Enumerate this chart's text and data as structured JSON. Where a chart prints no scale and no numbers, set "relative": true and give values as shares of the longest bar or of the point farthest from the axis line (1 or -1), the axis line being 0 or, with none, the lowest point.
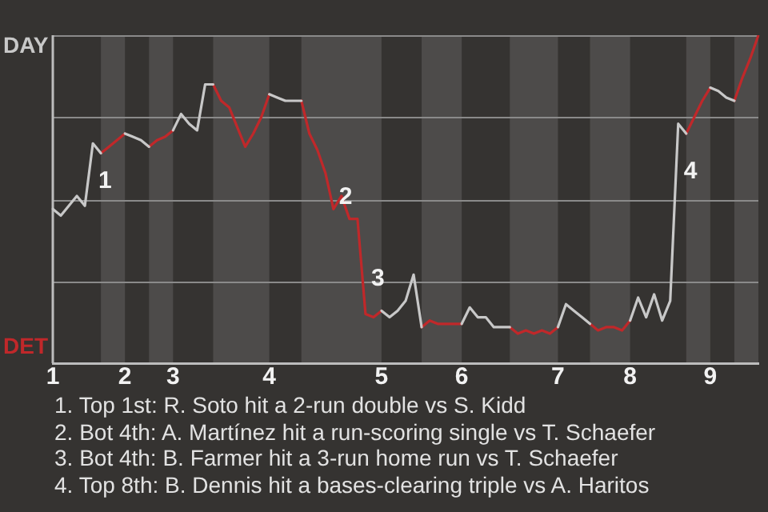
{
  "chart_data": {
    "type": "line",
    "relative": true,
    "categories": [
      "1",
      null,
      null,
      null,
      null,
      null,
      null,
      null,
      null,
      "2",
      null,
      null,
      null,
      null,
      null,
      "3",
      null,
      null,
      null,
      null,
      null,
      null,
      null,
      null,
      null,
      null,
      null,
      "4",
      null,
      null,
      null,
      null,
      null,
      null,
      null,
      null,
      null,
      null,
      null,
      null,
      null,
      "5",
      null,
      null,
      null,
      null,
      null,
      null,
      null,
      null,
      null,
      "6",
      null,
      null,
      null,
      null,
      null,
      null,
      null,
      null,
      null,
      null,
      null,
      "7",
      null,
      null,
      null,
      null,
      null,
      null,
      null,
      null,
      "8",
      null,
      null,
      null,
      null,
      null,
      null,
      null,
      null,
      null,
      "9",
      null,
      null,
      null,
      null,
      null,
      null
    ],
    "grid": "y",
    "legend": false,
    "marker": "none",
    "line_style": "solid",
    "series": [
      {
        "color": "#c8c8c8",
        "values": [
          0.47,
          0.45,
          0.48,
          0.51,
          0.48,
          0.67,
          0.64,
          null,
          null,
          0.7,
          0.69,
          0.68,
          0.66,
          null,
          null,
          0.71,
          0.76,
          0.73,
          0.71,
          0.85,
          0.85,
          null,
          null,
          null,
          null,
          null,
          null,
          0.82,
          0.81,
          0.8,
          0.8,
          0.8,
          null,
          null,
          null,
          null,
          null,
          null,
          null,
          null,
          null,
          0.16,
          0.14,
          0.16,
          0.19,
          0.27,
          0.11,
          null,
          null,
          null,
          null,
          0.12,
          0.17,
          0.14,
          0.14,
          0.11,
          0.11,
          0.11,
          null,
          null,
          null,
          null,
          null,
          0.11,
          0.18,
          0.16,
          0.14,
          0.12,
          null,
          null,
          null,
          null,
          0.13,
          0.2,
          0.14,
          0.21,
          0.13,
          0.19,
          0.73,
          0.7,
          null,
          null,
          0.84,
          0.83,
          0.81,
          0.8,
          null,
          null,
          null
        ]
      },
      {
        "color": "#c0282a",
        "values": [
          null,
          null,
          null,
          null,
          null,
          null,
          0.64,
          0.66,
          0.68,
          0.7,
          null,
          null,
          0.66,
          0.68,
          0.69,
          0.71,
          null,
          null,
          null,
          null,
          0.85,
          0.8,
          0.78,
          0.72,
          0.66,
          0.7,
          0.75,
          0.82,
          null,
          null,
          null,
          0.8,
          0.7,
          0.65,
          0.58,
          0.47,
          0.51,
          0.44,
          0.44,
          0.15,
          0.14,
          0.16,
          null,
          null,
          null,
          null,
          0.11,
          0.13,
          0.12,
          0.12,
          0.12,
          0.12,
          null,
          null,
          null,
          null,
          null,
          0.11,
          0.09,
          0.1,
          0.09,
          0.1,
          0.09,
          0.11,
          null,
          null,
          null,
          0.12,
          0.1,
          0.11,
          0.11,
          0.1,
          0.13,
          null,
          null,
          null,
          null,
          null,
          null,
          0.7,
          0.75,
          0.8,
          0.84,
          null,
          null,
          0.8,
          0.87,
          0.93,
          1
        ]
      }
    ],
    "annotations": [
      "DAY",
      "DET",
      {
        "text": "1",
        "y": 0.67
      },
      {
        "text": "2",
        "y": 0.47
      },
      {
        "text": "3",
        "y": 0.15
      },
      {
        "text": "4",
        "y": 0.73
      },
      "1. Top 1st: R. Soto hit a 2-run double vs S. Kidd",
      "2. Bot 4th: A. Martínez hit a run-scoring single vs T. Schaefer",
      "3. Bot 4th: B. Farmer hit a 3-run home run vs T. Schaefer",
      "4. Top 8th: B. Dennis hit a bases-clearing triple vs A. Haritos"
    ]
  }
}
